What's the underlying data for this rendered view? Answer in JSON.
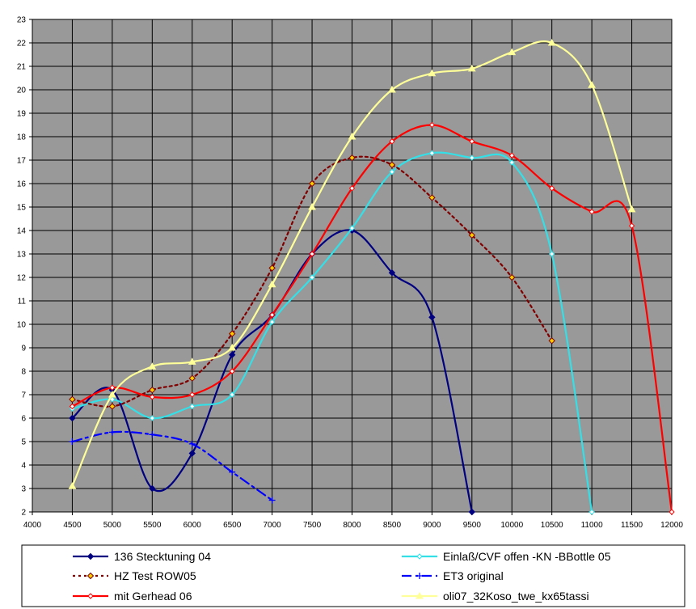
{
  "chart_data": {
    "type": "line",
    "title": "",
    "xlabel": "",
    "ylabel": "",
    "xlim": [
      4000,
      12000
    ],
    "ylim": [
      2,
      23
    ],
    "x_ticks": [
      4000,
      4500,
      5000,
      5500,
      6000,
      6500,
      7000,
      7500,
      8000,
      8500,
      9000,
      9500,
      10000,
      10500,
      11000,
      11500,
      12000
    ],
    "y_ticks": [
      2,
      3,
      4,
      5,
      6,
      7,
      8,
      9,
      10,
      11,
      12,
      13,
      14,
      15,
      16,
      17,
      18,
      19,
      20,
      21,
      22,
      23
    ],
    "grid": true,
    "plot_background": "#999999",
    "legend_placement": "bottom",
    "series": [
      {
        "name": "136 Stecktuning 04",
        "color": "#000080",
        "dash": "solid",
        "marker": "diamond-filled",
        "x": [
          4500,
          5000,
          5500,
          6000,
          6500,
          7000,
          7500,
          8000,
          8500,
          9000,
          9500
        ],
        "y": [
          6.0,
          7.2,
          3.0,
          4.5,
          8.7,
          10.4,
          13.0,
          14.0,
          12.2,
          10.3,
          2.0
        ]
      },
      {
        "name": "Einlaß/CVF offen -KN -BBottle 05",
        "color": "#33e0e8",
        "dash": "solid",
        "marker": "diamond-open",
        "x": [
          4500,
          5000,
          5500,
          6000,
          6500,
          7000,
          7500,
          8000,
          8500,
          9000,
          9500,
          10000,
          10500,
          11000
        ],
        "y": [
          6.4,
          6.8,
          6.0,
          6.5,
          7.0,
          10.1,
          12.0,
          14.1,
          16.5,
          17.3,
          17.1,
          16.9,
          13.0,
          2.0
        ]
      },
      {
        "name": "HZ Test ROW05",
        "color": "#800000",
        "dash": "dotted",
        "marker": "diamond-orange",
        "x": [
          4500,
          5000,
          5500,
          6000,
          6500,
          7000,
          7500,
          8000,
          8500,
          9000,
          9500,
          10000,
          10500
        ],
        "y": [
          6.8,
          6.5,
          7.2,
          7.7,
          9.6,
          12.4,
          16.0,
          17.1,
          16.8,
          15.4,
          13.8,
          12.0,
          9.3
        ]
      },
      {
        "name": "ET3 original",
        "color": "#0000ff",
        "dash": "dashdot",
        "marker": "plus",
        "x": [
          4500,
          5000,
          5500,
          6000,
          6500,
          7000
        ],
        "y": [
          5.0,
          5.4,
          5.3,
          4.9,
          3.7,
          2.5
        ]
      },
      {
        "name": "mit Gerhead 06",
        "color": "#ff0000",
        "dash": "solid",
        "marker": "diamond-open",
        "x": [
          4500,
          5000,
          5500,
          6000,
          6500,
          7000,
          7500,
          8000,
          8500,
          9000,
          9500,
          10000,
          10500,
          11000,
          11500,
          12000
        ],
        "y": [
          6.5,
          7.3,
          6.9,
          7.0,
          8.0,
          10.4,
          13.0,
          15.8,
          17.8,
          18.5,
          17.8,
          17.2,
          15.8,
          14.8,
          14.2,
          2.0
        ]
      },
      {
        "name": "oli07_32Koso_twe_kx65tassi",
        "color": "#ffff99",
        "dash": "solid",
        "marker": "triangle",
        "x": [
          4500,
          5000,
          5500,
          6000,
          6500,
          7000,
          7500,
          8000,
          8500,
          9000,
          9500,
          10000,
          10500,
          11000,
          11500
        ],
        "y": [
          3.1,
          7.0,
          8.2,
          8.4,
          9.0,
          11.7,
          15.0,
          18.0,
          20.0,
          20.7,
          20.9,
          21.6,
          22.0,
          20.2,
          14.9
        ]
      }
    ],
    "legend_order": [
      [
        "136 Stecktuning 04",
        "Einlaß/CVF offen -KN -BBottle 05"
      ],
      [
        "HZ Test ROW05",
        "ET3 original"
      ],
      [
        "mit Gerhead 06",
        "oli07_32Koso_twe_kx65tassi"
      ]
    ]
  }
}
